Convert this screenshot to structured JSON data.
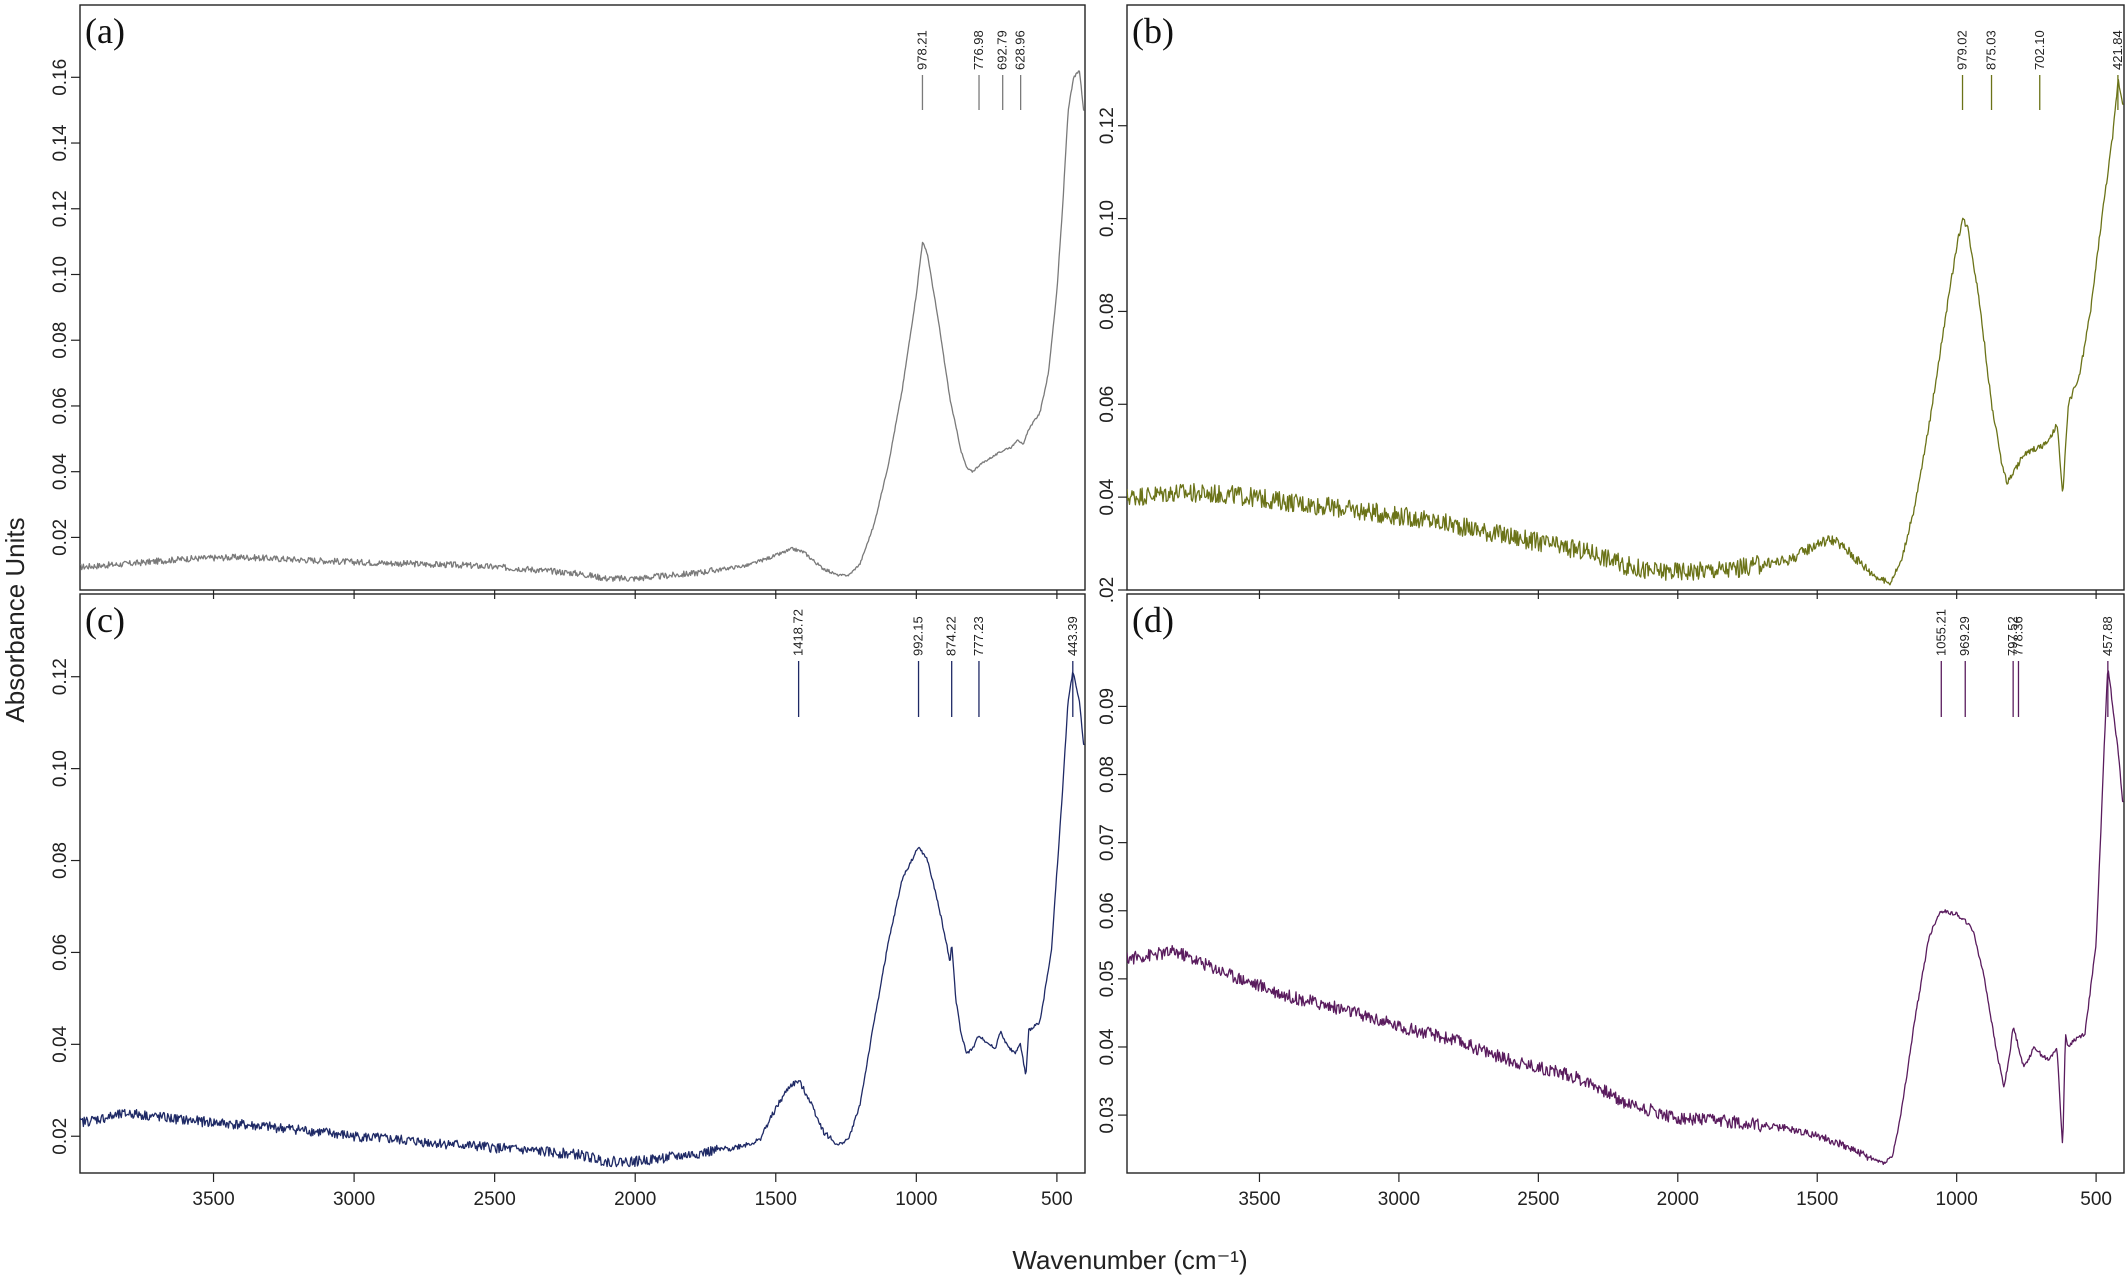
{
  "figure": {
    "ylabel": "Absorbance Units",
    "xlabel": "Wavenumber (cm⁻¹)"
  },
  "chart_data": [
    {
      "type": "line",
      "panel_label": "(a)",
      "color": "#7a7a7a",
      "xlim": [
        3975,
        400
      ],
      "ylim": [
        0.004,
        0.182
      ],
      "x_ticks": [
        3500,
        3000,
        2500,
        2000,
        1500,
        1000,
        500
      ],
      "y_ticks": [
        0.02,
        0.04,
        0.06,
        0.08,
        0.1,
        0.12,
        0.14,
        0.16
      ],
      "y_tick_labels": [
        "0.02",
        "0.04",
        "0.06",
        "0.08",
        "0.10",
        "0.12",
        "0.14",
        "0.16"
      ],
      "peaks": [
        "978.21",
        "776.98",
        "692.79",
        "628.96"
      ],
      "noise": 0.0006,
      "series": [
        {
          "x": [
            3975,
            3800,
            3600,
            3400,
            3000,
            2600,
            2400,
            2200,
            2100,
            2000,
            1800,
            1600,
            1500,
            1440,
            1400,
            1340,
            1280,
            1240,
            1200,
            1150,
            1100,
            1050,
            1000,
            978,
            960,
            920,
            880,
            840,
            820,
            800,
            776,
            740,
            700,
            680,
            660,
            640,
            620,
            600,
            560,
            530,
            500,
            480,
            460,
            440,
            420,
            405
          ],
          "y": [
            0.011,
            0.012,
            0.0135,
            0.014,
            0.0125,
            0.0115,
            0.0105,
            0.009,
            0.0075,
            0.0075,
            0.009,
            0.0115,
            0.0145,
            0.0165,
            0.0155,
            0.011,
            0.0085,
            0.0085,
            0.012,
            0.024,
            0.042,
            0.065,
            0.094,
            0.11,
            0.106,
            0.085,
            0.062,
            0.046,
            0.041,
            0.04,
            0.042,
            0.044,
            0.046,
            0.047,
            0.0475,
            0.05,
            0.048,
            0.053,
            0.058,
            0.07,
            0.095,
            0.12,
            0.15,
            0.16,
            0.162,
            0.15
          ]
        }
      ]
    },
    {
      "type": "line",
      "panel_label": "(b)",
      "color": "#6b7318",
      "xlim": [
        3975,
        400
      ],
      "ylim": [
        0.02,
        0.146
      ],
      "x_ticks": [
        3500,
        3000,
        2500,
        2000,
        1500,
        1000,
        500
      ],
      "y_ticks": [
        0.02,
        0.04,
        0.06,
        0.08,
        0.1,
        0.12
      ],
      "y_tick_labels": [
        ".02",
        "0.04",
        "0.06",
        "0.08",
        "0.10",
        "0.12"
      ],
      "peaks": [
        "979.02",
        "875.03",
        "702.10",
        "421.84"
      ],
      "noise": 0.0013,
      "series": [
        {
          "x": [
            3975,
            3800,
            3600,
            3400,
            3200,
            3000,
            2800,
            2600,
            2400,
            2300,
            2200,
            2100,
            2000,
            1800,
            1600,
            1500,
            1450,
            1400,
            1330,
            1280,
            1240,
            1200,
            1150,
            1100,
            1050,
            1000,
            979,
            960,
            920,
            875,
            840,
            820,
            800,
            760,
            720,
            690,
            660,
            640,
            620,
            600,
            560,
            520,
            480,
            440,
            421,
            405
          ],
          "y": [
            0.04,
            0.041,
            0.0405,
            0.039,
            0.0375,
            0.036,
            0.034,
            0.0315,
            0.029,
            0.028,
            0.0255,
            0.024,
            0.024,
            0.0245,
            0.0265,
            0.03,
            0.031,
            0.029,
            0.025,
            0.0225,
            0.0215,
            0.026,
            0.038,
            0.055,
            0.075,
            0.094,
            0.1,
            0.098,
            0.083,
            0.06,
            0.048,
            0.043,
            0.045,
            0.049,
            0.0505,
            0.051,
            0.053,
            0.056,
            0.04,
            0.06,
            0.066,
            0.08,
            0.1,
            0.118,
            0.13,
            0.125
          ]
        }
      ]
    },
    {
      "type": "line",
      "panel_label": "(c)",
      "color": "#1f2a66",
      "xlim": [
        3975,
        400
      ],
      "ylim": [
        0.012,
        0.138
      ],
      "x_ticks": [
        3500,
        3000,
        2500,
        2000,
        1500,
        1000,
        500
      ],
      "y_ticks": [
        0.02,
        0.04,
        0.06,
        0.08,
        0.1,
        0.12
      ],
      "y_tick_labels": [
        "0.02",
        "0.04",
        "0.06",
        "0.08",
        "0.10",
        "0.12"
      ],
      "peaks": [
        "1418.72",
        "992.15",
        "874.22",
        "777.23",
        "443.39"
      ],
      "noise": 0.0007,
      "series": [
        {
          "x": [
            3975,
            3800,
            3600,
            3400,
            3200,
            3000,
            2800,
            2600,
            2400,
            2200,
            2100,
            2000,
            1800,
            1650,
            1560,
            1500,
            1450,
            1418,
            1380,
            1330,
            1280,
            1240,
            1200,
            1150,
            1100,
            1050,
            1000,
            992,
            960,
            920,
            880,
            874,
            860,
            840,
            820,
            800,
            777,
            760,
            720,
            700,
            680,
            650,
            630,
            610,
            600,
            560,
            520,
            480,
            460,
            443,
            420,
            405
          ],
          "y": [
            0.023,
            0.025,
            0.0235,
            0.0225,
            0.0215,
            0.02,
            0.019,
            0.018,
            0.017,
            0.016,
            0.0145,
            0.0145,
            0.016,
            0.0175,
            0.019,
            0.026,
            0.031,
            0.032,
            0.028,
            0.021,
            0.018,
            0.0195,
            0.027,
            0.045,
            0.062,
            0.076,
            0.082,
            0.083,
            0.08,
            0.07,
            0.058,
            0.062,
            0.05,
            0.042,
            0.038,
            0.039,
            0.042,
            0.041,
            0.039,
            0.043,
            0.04,
            0.038,
            0.04,
            0.033,
            0.043,
            0.045,
            0.06,
            0.095,
            0.115,
            0.121,
            0.115,
            0.105
          ]
        }
      ]
    },
    {
      "type": "line",
      "panel_label": "(d)",
      "color": "#5a1c5e",
      "xlim": [
        3975,
        400
      ],
      "ylim": [
        0.0215,
        0.1065
      ],
      "x_ticks": [
        3500,
        3000,
        2500,
        2000,
        1500,
        1000,
        500
      ],
      "y_ticks": [
        0.03,
        0.04,
        0.05,
        0.06,
        0.07,
        0.08,
        0.09
      ],
      "y_tick_labels": [
        "0.03",
        "0.04",
        "0.05",
        "0.06",
        "0.07",
        "0.08",
        "0.09"
      ],
      "peaks": [
        "1055.21",
        "969.29",
        "797.52",
        "778.36",
        "457.88"
      ],
      "noise": 0.0006,
      "series": [
        {
          "x": [
            3975,
            3800,
            3600,
            3400,
            3200,
            3000,
            2800,
            2600,
            2400,
            2300,
            2200,
            2000,
            1800,
            1600,
            1500,
            1400,
            1300,
            1260,
            1230,
            1200,
            1150,
            1100,
            1070,
            1055,
            1000,
            969,
            940,
            900,
            860,
            830,
            810,
            797,
            778,
            760,
            720,
            700,
            670,
            640,
            620,
            610,
            600,
            580,
            540,
            500,
            470,
            458,
            440,
            420,
            405
          ],
          "y": [
            0.053,
            0.054,
            0.0505,
            0.0475,
            0.0455,
            0.043,
            0.041,
            0.038,
            0.036,
            0.0345,
            0.032,
            0.0295,
            0.029,
            0.028,
            0.027,
            0.0255,
            0.0235,
            0.023,
            0.024,
            0.03,
            0.044,
            0.056,
            0.059,
            0.06,
            0.0595,
            0.0585,
            0.057,
            0.05,
            0.04,
            0.034,
            0.039,
            0.043,
            0.04,
            0.037,
            0.04,
            0.039,
            0.038,
            0.04,
            0.025,
            0.042,
            0.04,
            0.041,
            0.042,
            0.055,
            0.085,
            0.096,
            0.09,
            0.083,
            0.076
          ]
        }
      ]
    }
  ]
}
